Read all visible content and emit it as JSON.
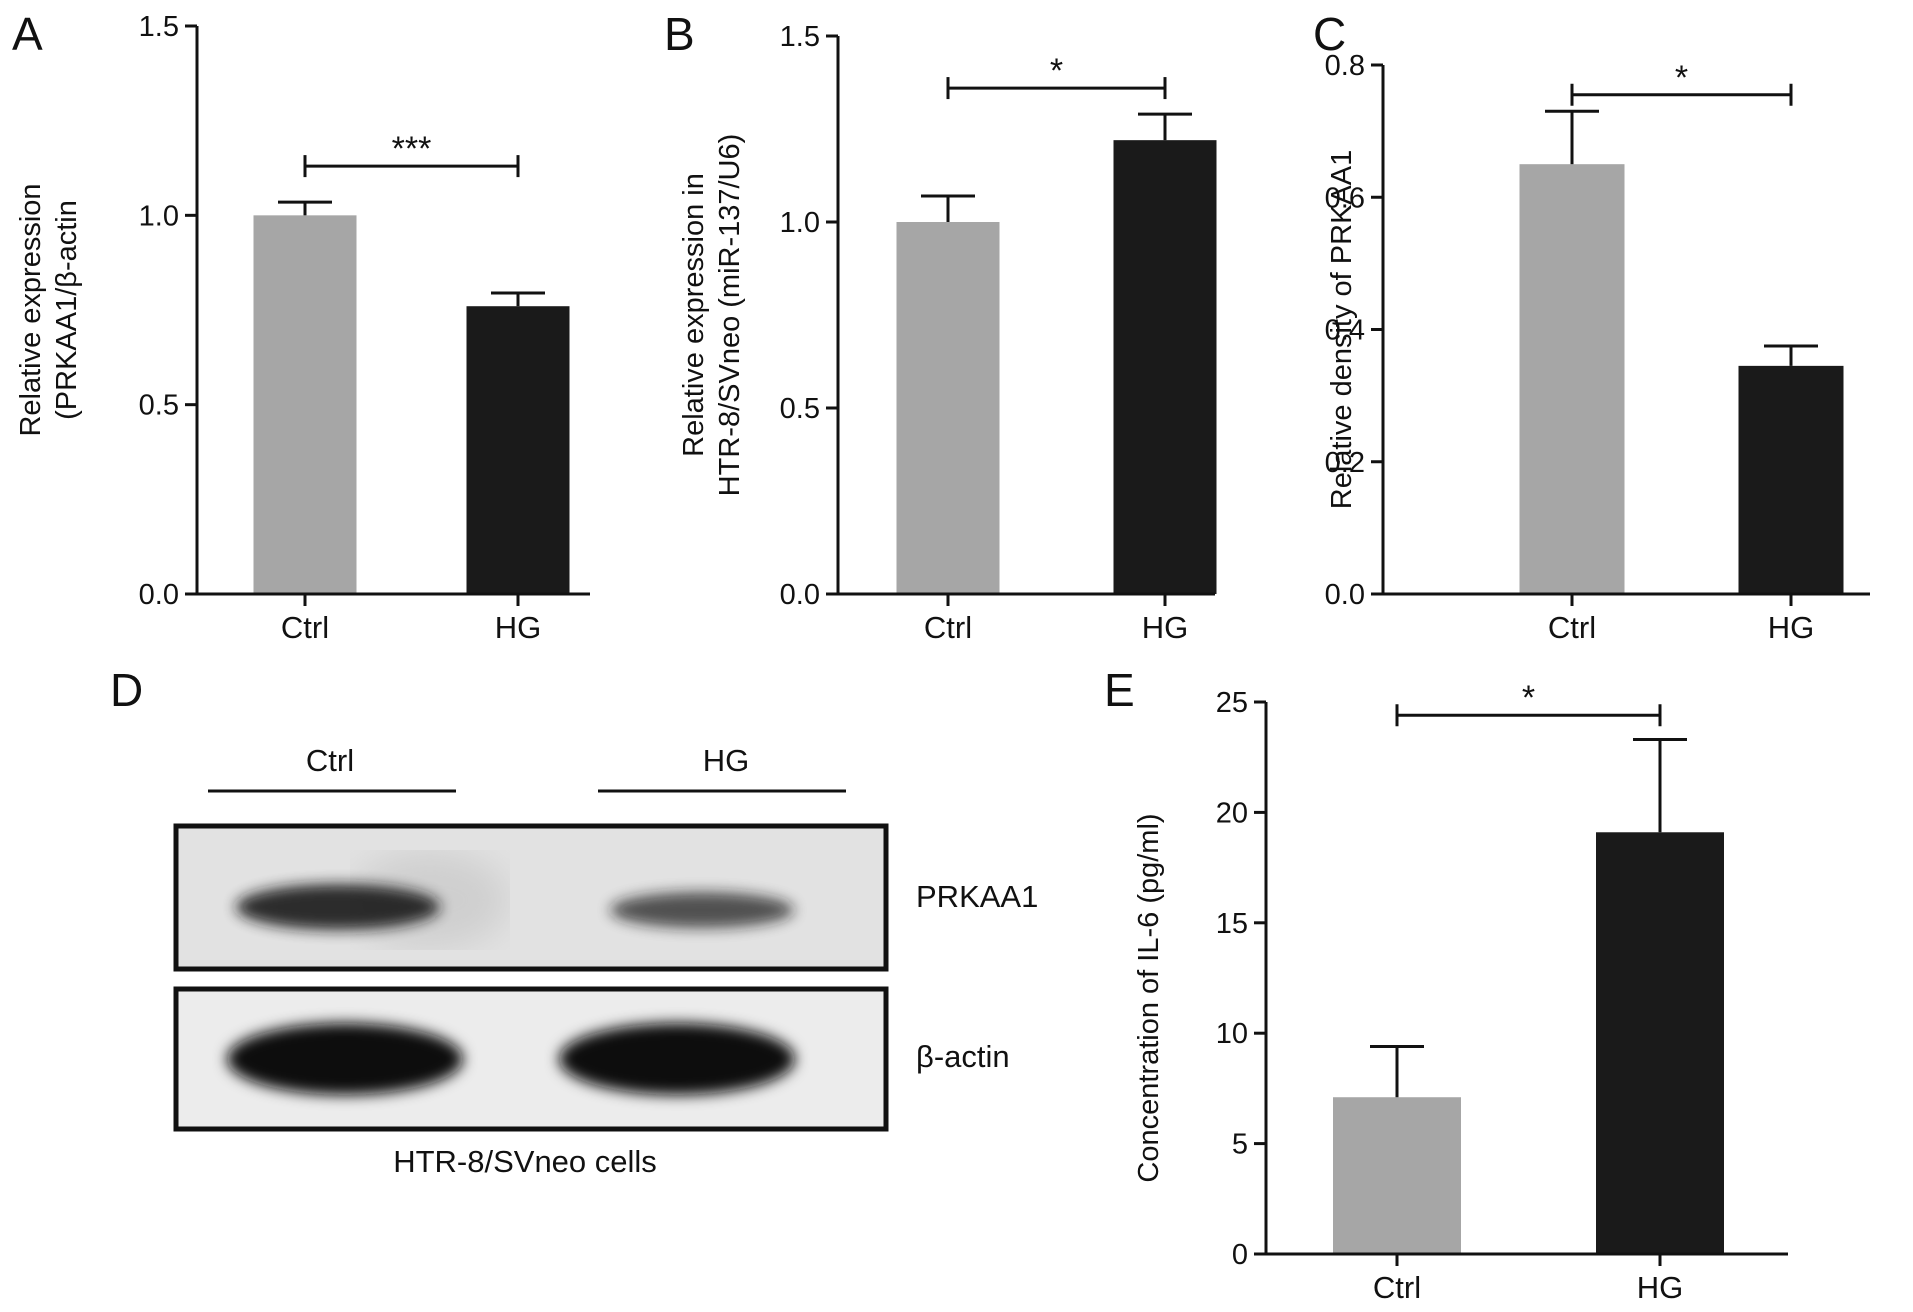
{
  "figure": {
    "colors": {
      "ctrl": "#a6a6a6",
      "hg": "#1a1a1a",
      "axis": "#111111"
    }
  },
  "chart_data": [
    {
      "panel": "A",
      "type": "bar",
      "categories": [
        "Ctrl",
        "HG"
      ],
      "values": [
        1.0,
        0.76
      ],
      "errors": [
        0.035,
        0.035
      ],
      "ylabel": [
        "Relative expression",
        "(PRKAA1/β-actin"
      ],
      "ylim": [
        0,
        1.5
      ],
      "yticks": [
        "0.0",
        "0.5",
        "1.0",
        "1.5"
      ],
      "significance": {
        "text": "***",
        "level": 1.13
      }
    },
    {
      "panel": "B",
      "type": "bar",
      "categories": [
        "Ctrl",
        "HG"
      ],
      "values": [
        1.0,
        1.22
      ],
      "errors": [
        0.07,
        0.07
      ],
      "ylabel": [
        "Relative expression in",
        "HTR-8/SVneo (miR-137/U6)"
      ],
      "ylim": [
        0,
        1.5
      ],
      "yticks": [
        "0.0",
        "0.5",
        "1.0",
        "1.5"
      ],
      "significance": {
        "text": "*",
        "level": 1.36
      }
    },
    {
      "panel": "C",
      "type": "bar",
      "categories": [
        "Ctrl",
        "HG"
      ],
      "values": [
        0.65,
        0.345
      ],
      "errors": [
        0.08,
        0.03
      ],
      "ylabel": [
        "Relative density of PRKAA1"
      ],
      "ylim": [
        0,
        0.8
      ],
      "yticks": [
        "0.0",
        "0.2",
        "0.4",
        "0.6",
        "0.8"
      ],
      "significance": {
        "text": "*",
        "level": 0.755
      }
    },
    {
      "panel": "E",
      "type": "bar",
      "categories": [
        "Ctrl",
        "HG"
      ],
      "values": [
        7.1,
        19.1
      ],
      "errors": [
        2.3,
        4.2
      ],
      "ylabel": [
        "Concentration of IL-6 (pg/ml)"
      ],
      "ylim": [
        0,
        25
      ],
      "yticks": [
        "0",
        "5",
        "10",
        "15",
        "20",
        "25"
      ],
      "significance": {
        "text": "*",
        "level": 24.4
      }
    }
  ],
  "blot": {
    "panel": "D",
    "lanes": [
      "Ctrl",
      "HG"
    ],
    "rows": [
      {
        "label": "PRKAA1",
        "intensity": [
          0.85,
          0.62
        ]
      },
      {
        "label": "β-actin",
        "intensity": [
          1.0,
          1.0
        ]
      }
    ],
    "caption": "HTR-8/SVneo cells"
  }
}
